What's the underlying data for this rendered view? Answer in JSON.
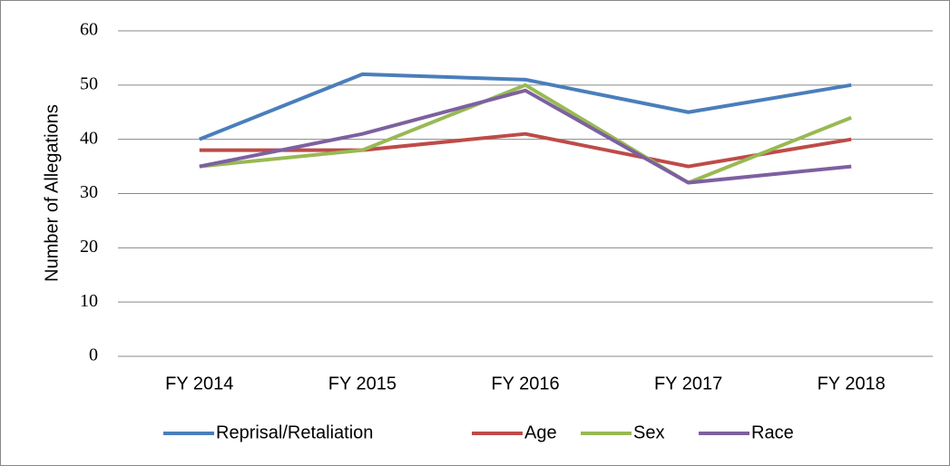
{
  "chart_data": {
    "type": "line",
    "y_label": "Number of Allegations",
    "categories": [
      "FY 2014",
      "FY 2015",
      "FY 2016",
      "FY 2017",
      "FY 2018"
    ],
    "series": [
      {
        "name": "Reprisal/Retaliation",
        "color": "#4a7ebb",
        "values": [
          40,
          52,
          51,
          45,
          50
        ]
      },
      {
        "name": "Age",
        "color": "#be4b48",
        "values": [
          38,
          38,
          41,
          35,
          40
        ]
      },
      {
        "name": "Sex",
        "color": "#98b954",
        "values": [
          35,
          38,
          50,
          32,
          44
        ]
      },
      {
        "name": "Race",
        "color": "#7d60a0",
        "values": [
          35,
          41,
          49,
          32,
          35
        ]
      }
    ],
    "ylim": [
      0,
      60
    ],
    "yticks": [
      0,
      10,
      20,
      30,
      40,
      50,
      60
    ],
    "grid": true,
    "legend": "bottom"
  }
}
